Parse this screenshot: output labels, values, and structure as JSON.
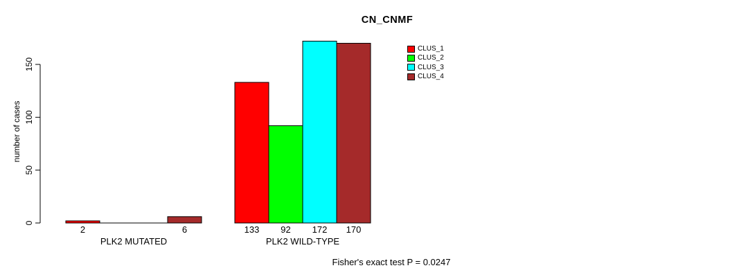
{
  "figure": {
    "background": "#FFFFFF",
    "text_color": "#000000"
  },
  "chart_data": {
    "type": "bar",
    "title": "CN_CNMF",
    "ylabel": "number of cases",
    "xlabel": "",
    "ylim": [
      0,
      150
    ],
    "yticks": [
      0,
      50,
      100,
      150
    ],
    "grid": false,
    "legend_position": "top-right",
    "annotation": "Fisher's exact test P = 0.0247",
    "categories": [
      "PLK2 MUTATED",
      "PLK2 WILD-TYPE"
    ],
    "series": [
      {
        "name": "CLUS_1",
        "color": "#FF0000",
        "values": [
          2,
          133
        ]
      },
      {
        "name": "CLUS_2",
        "color": "#00FF00",
        "values": [
          0,
          92
        ]
      },
      {
        "name": "CLUS_3",
        "color": "#00FFFF",
        "values": [
          0,
          172
        ]
      },
      {
        "name": "CLUS_4",
        "color": "#A52A2A",
        "values": [
          6,
          170
        ]
      }
    ],
    "value_labels": [
      [
        "2",
        "",
        "",
        "6"
      ],
      [
        "133",
        "92",
        "172",
        "170"
      ]
    ],
    "axis_color": "#000000"
  }
}
